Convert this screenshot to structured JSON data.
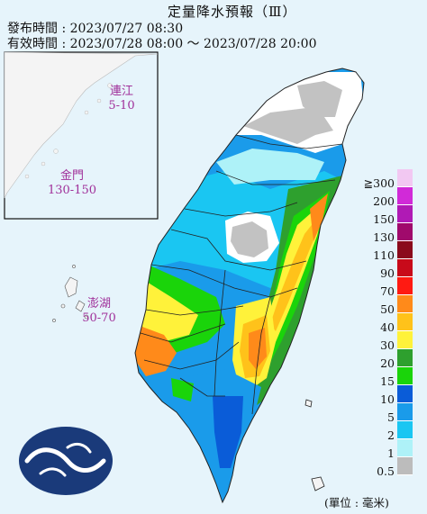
{
  "header": {
    "title": "定量降水預報（Ⅲ）",
    "issued": "發布時間 : 2023/07/27 08:30",
    "valid": "有效時間 : 2023/07/28 08:00 ～ 2023/07/28 20:00"
  },
  "regions": {
    "lienchiang": {
      "name": "連江",
      "range": "5-10"
    },
    "kinmen": {
      "name": "金門",
      "range": "130-150"
    },
    "penghu": {
      "name": "澎湖",
      "range": "50-70"
    }
  },
  "legend": {
    "unit": "(單位 : 毫米)",
    "levels": [
      {
        "label": "≧300",
        "color": "#f2c8f2"
      },
      {
        "label": "200",
        "color": "#d12ad8"
      },
      {
        "label": "150",
        "color": "#b01ab5"
      },
      {
        "label": "130",
        "color": "#a00a6c"
      },
      {
        "label": "110",
        "color": "#8a0a1c"
      },
      {
        "label": "90",
        "color": "#c80a1a"
      },
      {
        "label": "70",
        "color": "#ff1a12"
      },
      {
        "label": "50",
        "color": "#ff8a1a"
      },
      {
        "label": "40",
        "color": "#ffc21a"
      },
      {
        "label": "30",
        "color": "#fff23a"
      },
      {
        "label": "20",
        "color": "#2ea02e"
      },
      {
        "label": "15",
        "color": "#1ad40a"
      },
      {
        "label": "10",
        "color": "#0a5cd8"
      },
      {
        "label": "5",
        "color": "#1a9bea"
      },
      {
        "label": "2",
        "color": "#1ac6f2"
      },
      {
        "label": "1",
        "color": "#aef2f8"
      },
      {
        "label": "0.5",
        "color": "#bcbcbc"
      }
    ]
  }
}
